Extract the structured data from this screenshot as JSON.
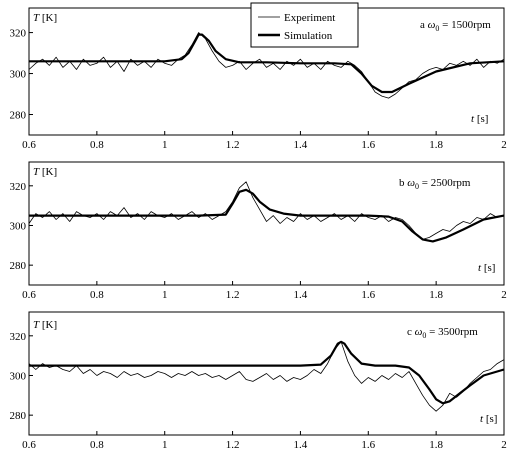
{
  "legend": {
    "experiment_label": "Experiment",
    "simulation_label": "Simulation"
  },
  "axis_common": {
    "x_ticks": [
      "0.6",
      "0.8",
      "1",
      "1.2",
      "1.4",
      "1.6",
      "1.8",
      "2"
    ],
    "y_ticks": [
      "280",
      "300",
      "320"
    ],
    "x_label_var": "t",
    "x_label_unit": "[s]",
    "y_label_var": "T",
    "y_label_unit": "[K]"
  },
  "chart_data": [
    {
      "type": "line",
      "panel_letter": "a",
      "omega_symbol": "ω",
      "omega_sub": "0",
      "omega_value": "= 1500rpm",
      "xlim": [
        0.6,
        2.0
      ],
      "ylim": [
        270,
        332
      ],
      "grid": false,
      "legend_position": "top-center",
      "series": [
        {
          "name": "Simulation",
          "style": "thick",
          "x": [
            0.6,
            1.0,
            1.05,
            1.07,
            1.09,
            1.1,
            1.11,
            1.13,
            1.15,
            1.18,
            1.22,
            1.3,
            1.4,
            1.5,
            1.55,
            1.58,
            1.61,
            1.64,
            1.67,
            1.72,
            1.8,
            1.9,
            2.0
          ],
          "y": [
            306,
            306,
            307,
            310,
            316,
            319,
            319,
            316,
            311,
            307,
            305.5,
            305.5,
            305,
            305,
            304.5,
            300,
            294,
            291,
            291,
            295,
            301,
            305,
            306
          ]
        },
        {
          "name": "Experiment",
          "style": "thin",
          "x": [
            0.6,
            0.62,
            0.64,
            0.66,
            0.68,
            0.7,
            0.72,
            0.74,
            0.76,
            0.78,
            0.8,
            0.82,
            0.84,
            0.86,
            0.88,
            0.9,
            0.92,
            0.94,
            0.96,
            0.98,
            1.0,
            1.02,
            1.04,
            1.06,
            1.08,
            1.1,
            1.12,
            1.14,
            1.16,
            1.18,
            1.2,
            1.22,
            1.24,
            1.26,
            1.28,
            1.3,
            1.32,
            1.34,
            1.36,
            1.38,
            1.4,
            1.42,
            1.44,
            1.46,
            1.48,
            1.5,
            1.52,
            1.54,
            1.56,
            1.58,
            1.6,
            1.62,
            1.64,
            1.66,
            1.68,
            1.7,
            1.72,
            1.74,
            1.76,
            1.78,
            1.8,
            1.82,
            1.84,
            1.86,
            1.88,
            1.9,
            1.92,
            1.94,
            1.96,
            1.98,
            2.0
          ],
          "y": [
            302,
            305,
            307,
            304,
            308,
            303,
            306,
            302,
            307,
            304,
            305,
            308,
            303,
            306,
            301,
            307,
            304,
            306,
            303,
            307,
            305,
            304,
            307,
            309,
            314,
            320,
            317,
            311,
            306,
            303,
            304,
            306,
            302,
            305,
            307,
            303,
            305,
            302,
            306,
            304,
            307,
            303,
            305,
            302,
            306,
            304,
            303,
            306,
            304,
            301,
            296,
            291,
            289,
            288,
            290,
            293,
            296,
            297,
            300,
            302,
            303,
            302,
            305,
            304,
            306,
            304,
            307,
            303,
            306,
            305,
            307
          ]
        }
      ]
    },
    {
      "type": "line",
      "panel_letter": "b",
      "omega_symbol": "ω",
      "omega_sub": "0",
      "omega_value": "= 2500rpm",
      "xlim": [
        0.6,
        2.0
      ],
      "ylim": [
        270,
        332
      ],
      "grid": false,
      "series": [
        {
          "name": "Simulation",
          "style": "thick",
          "x": [
            0.6,
            1.1,
            1.18,
            1.2,
            1.22,
            1.24,
            1.26,
            1.28,
            1.31,
            1.35,
            1.4,
            1.5,
            1.6,
            1.66,
            1.7,
            1.73,
            1.76,
            1.79,
            1.83,
            1.88,
            1.94,
            2.0
          ],
          "y": [
            305,
            305,
            305.5,
            311,
            317,
            318,
            316,
            312,
            308,
            306,
            305,
            305,
            305,
            304.5,
            302,
            297,
            293,
            292,
            294,
            298,
            303,
            305
          ]
        },
        {
          "name": "Experiment",
          "style": "thin",
          "x": [
            0.6,
            0.62,
            0.64,
            0.66,
            0.68,
            0.7,
            0.72,
            0.74,
            0.76,
            0.78,
            0.8,
            0.82,
            0.84,
            0.86,
            0.88,
            0.9,
            0.92,
            0.94,
            0.96,
            0.98,
            1.0,
            1.02,
            1.04,
            1.06,
            1.08,
            1.1,
            1.12,
            1.14,
            1.16,
            1.18,
            1.2,
            1.22,
            1.24,
            1.26,
            1.28,
            1.3,
            1.32,
            1.34,
            1.36,
            1.38,
            1.4,
            1.42,
            1.44,
            1.46,
            1.48,
            1.5,
            1.52,
            1.54,
            1.56,
            1.58,
            1.6,
            1.62,
            1.64,
            1.66,
            1.68,
            1.7,
            1.72,
            1.74,
            1.76,
            1.78,
            1.8,
            1.82,
            1.84,
            1.86,
            1.88,
            1.9,
            1.92,
            1.94,
            1.96,
            1.98,
            2.0
          ],
          "y": [
            301,
            306,
            304,
            307,
            303,
            306,
            302,
            307,
            305,
            304,
            306,
            303,
            307,
            305,
            309,
            304,
            306,
            303,
            307,
            305,
            304,
            306,
            303,
            305,
            307,
            304,
            306,
            303,
            305,
            307,
            312,
            319,
            322,
            314,
            308,
            302,
            305,
            301,
            304,
            302,
            306,
            303,
            305,
            302,
            304,
            306,
            303,
            305,
            302,
            306,
            304,
            303,
            305,
            302,
            304,
            303,
            300,
            296,
            293,
            294,
            296,
            298,
            297,
            300,
            302,
            301,
            304,
            303,
            306,
            304,
            305
          ]
        }
      ]
    },
    {
      "type": "line",
      "panel_letter": "c",
      "omega_symbol": "ω",
      "omega_sub": "0",
      "omega_value": "= 3500rpm",
      "xlim": [
        0.6,
        2.0
      ],
      "ylim": [
        270,
        332
      ],
      "grid": false,
      "series": [
        {
          "name": "Simulation",
          "style": "thick",
          "x": [
            0.6,
            1.4,
            1.46,
            1.49,
            1.51,
            1.52,
            1.53,
            1.55,
            1.58,
            1.62,
            1.68,
            1.72,
            1.75,
            1.78,
            1.8,
            1.82,
            1.84,
            1.87,
            1.9,
            1.94,
            2.0
          ],
          "y": [
            305,
            305,
            305.5,
            310,
            316,
            317,
            316,
            311,
            306,
            305,
            305,
            304,
            300,
            293,
            288,
            286,
            287,
            291,
            295,
            300,
            303
          ]
        },
        {
          "name": "Experiment",
          "style": "thin",
          "x": [
            0.6,
            0.62,
            0.64,
            0.66,
            0.68,
            0.7,
            0.72,
            0.74,
            0.76,
            0.78,
            0.8,
            0.82,
            0.84,
            0.86,
            0.88,
            0.9,
            0.92,
            0.94,
            0.96,
            0.98,
            1.0,
            1.02,
            1.04,
            1.06,
            1.08,
            1.1,
            1.12,
            1.14,
            1.16,
            1.18,
            1.2,
            1.22,
            1.24,
            1.26,
            1.28,
            1.3,
            1.32,
            1.34,
            1.36,
            1.38,
            1.4,
            1.42,
            1.44,
            1.46,
            1.48,
            1.5,
            1.52,
            1.54,
            1.56,
            1.58,
            1.6,
            1.62,
            1.64,
            1.66,
            1.68,
            1.7,
            1.72,
            1.74,
            1.76,
            1.78,
            1.8,
            1.82,
            1.84,
            1.86,
            1.88,
            1.9,
            1.92,
            1.94,
            1.96,
            1.98,
            2.0
          ],
          "y": [
            306,
            303,
            306,
            304,
            305,
            303,
            302,
            305,
            301,
            303,
            300,
            302,
            301,
            299,
            302,
            300,
            301,
            299,
            300,
            302,
            301,
            299,
            301,
            300,
            302,
            300,
            301,
            299,
            300,
            298,
            300,
            302,
            298,
            297,
            299,
            301,
            298,
            300,
            297,
            299,
            298,
            300,
            303,
            301,
            306,
            313,
            317,
            307,
            300,
            296,
            299,
            297,
            300,
            298,
            301,
            299,
            302,
            296,
            290,
            285,
            282,
            285,
            291,
            289,
            292,
            296,
            299,
            302,
            303,
            306,
            308
          ]
        }
      ]
    }
  ]
}
